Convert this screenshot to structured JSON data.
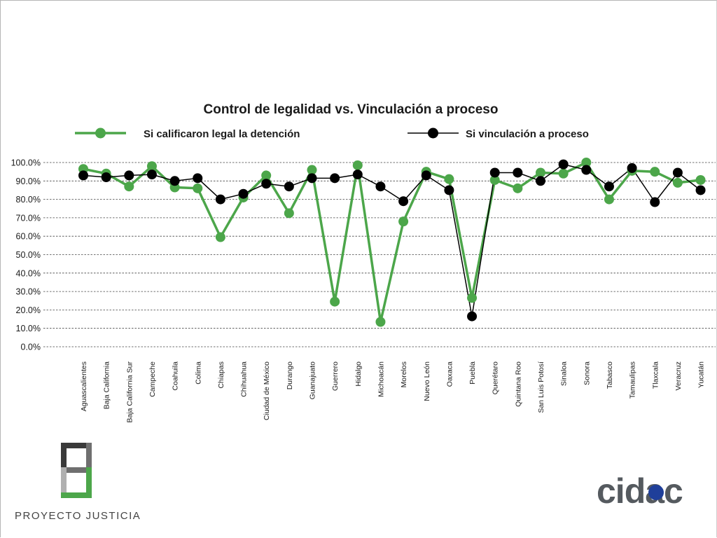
{
  "chart_data": {
    "type": "line",
    "title": "Control de legalidad vs. Vinculación a proceso",
    "xlabel": "",
    "ylabel": "",
    "ylim": [
      0,
      100
    ],
    "yticks": [
      "0.0%",
      "10.0%",
      "20.0%",
      "30.0%",
      "40.0%",
      "50.0%",
      "60.0%",
      "70.0%",
      "80.0%",
      "90.0%",
      "100.0%"
    ],
    "grid": "horizontal-dashed",
    "categories": [
      "Aguascalientes",
      "Baja California",
      "Baja California Sur",
      "Campeche",
      "Coahuila",
      "Colima",
      "Chiapas",
      "Chihuahua",
      "Ciudad de México",
      "Durango",
      "Guanajuato",
      "Guerrero",
      "Hidalgo",
      "Michoacán",
      "Morelos",
      "Nuevo León",
      "Oaxaca",
      "Puebla",
      "Querétaro",
      "Quintana Roo",
      "San Luis Potosí",
      "Sinaloa",
      "Sonora",
      "Tabasco",
      "Tamaulipas",
      "Tlaxcala",
      "Veracruz",
      "Yucatán"
    ],
    "series": [
      {
        "name": "Si calificaron legal la detención",
        "color": "#4ca64a",
        "values": [
          96.5,
          94.0,
          87.0,
          98.0,
          86.5,
          86.0,
          59.5,
          81.0,
          93.0,
          72.5,
          96.0,
          24.5,
          98.5,
          13.5,
          68.0,
          95.0,
          91.0,
          26.5,
          90.5,
          86.0,
          94.5,
          94.0,
          100.0,
          80.0,
          95.5,
          95.0,
          89.0,
          90.5
        ]
      },
      {
        "name": "Si vinculación a proceso",
        "color": "#000000",
        "values": [
          93.0,
          92.0,
          93.0,
          93.5,
          90.0,
          91.5,
          80.0,
          83.0,
          88.5,
          87.0,
          91.5,
          91.5,
          93.5,
          87.0,
          79.0,
          93.0,
          85.0,
          16.5,
          94.5,
          94.5,
          90.0,
          99.0,
          96.0,
          87.0,
          97.0,
          78.5,
          94.5,
          85.0
        ]
      }
    ],
    "legend": "top"
  },
  "branding": {
    "left_logo_text": "PROYECTO JUSTICIA",
    "right_logo_text": "cidac",
    "left_logo_colors": {
      "dark": "#3a3a3a",
      "mid": "#6f6f6f",
      "light": "#b0b0b0",
      "accent": "#4ca64a"
    },
    "right_logo_colors": {
      "text": "#555a5f",
      "dot": "#1f3f9a"
    }
  }
}
